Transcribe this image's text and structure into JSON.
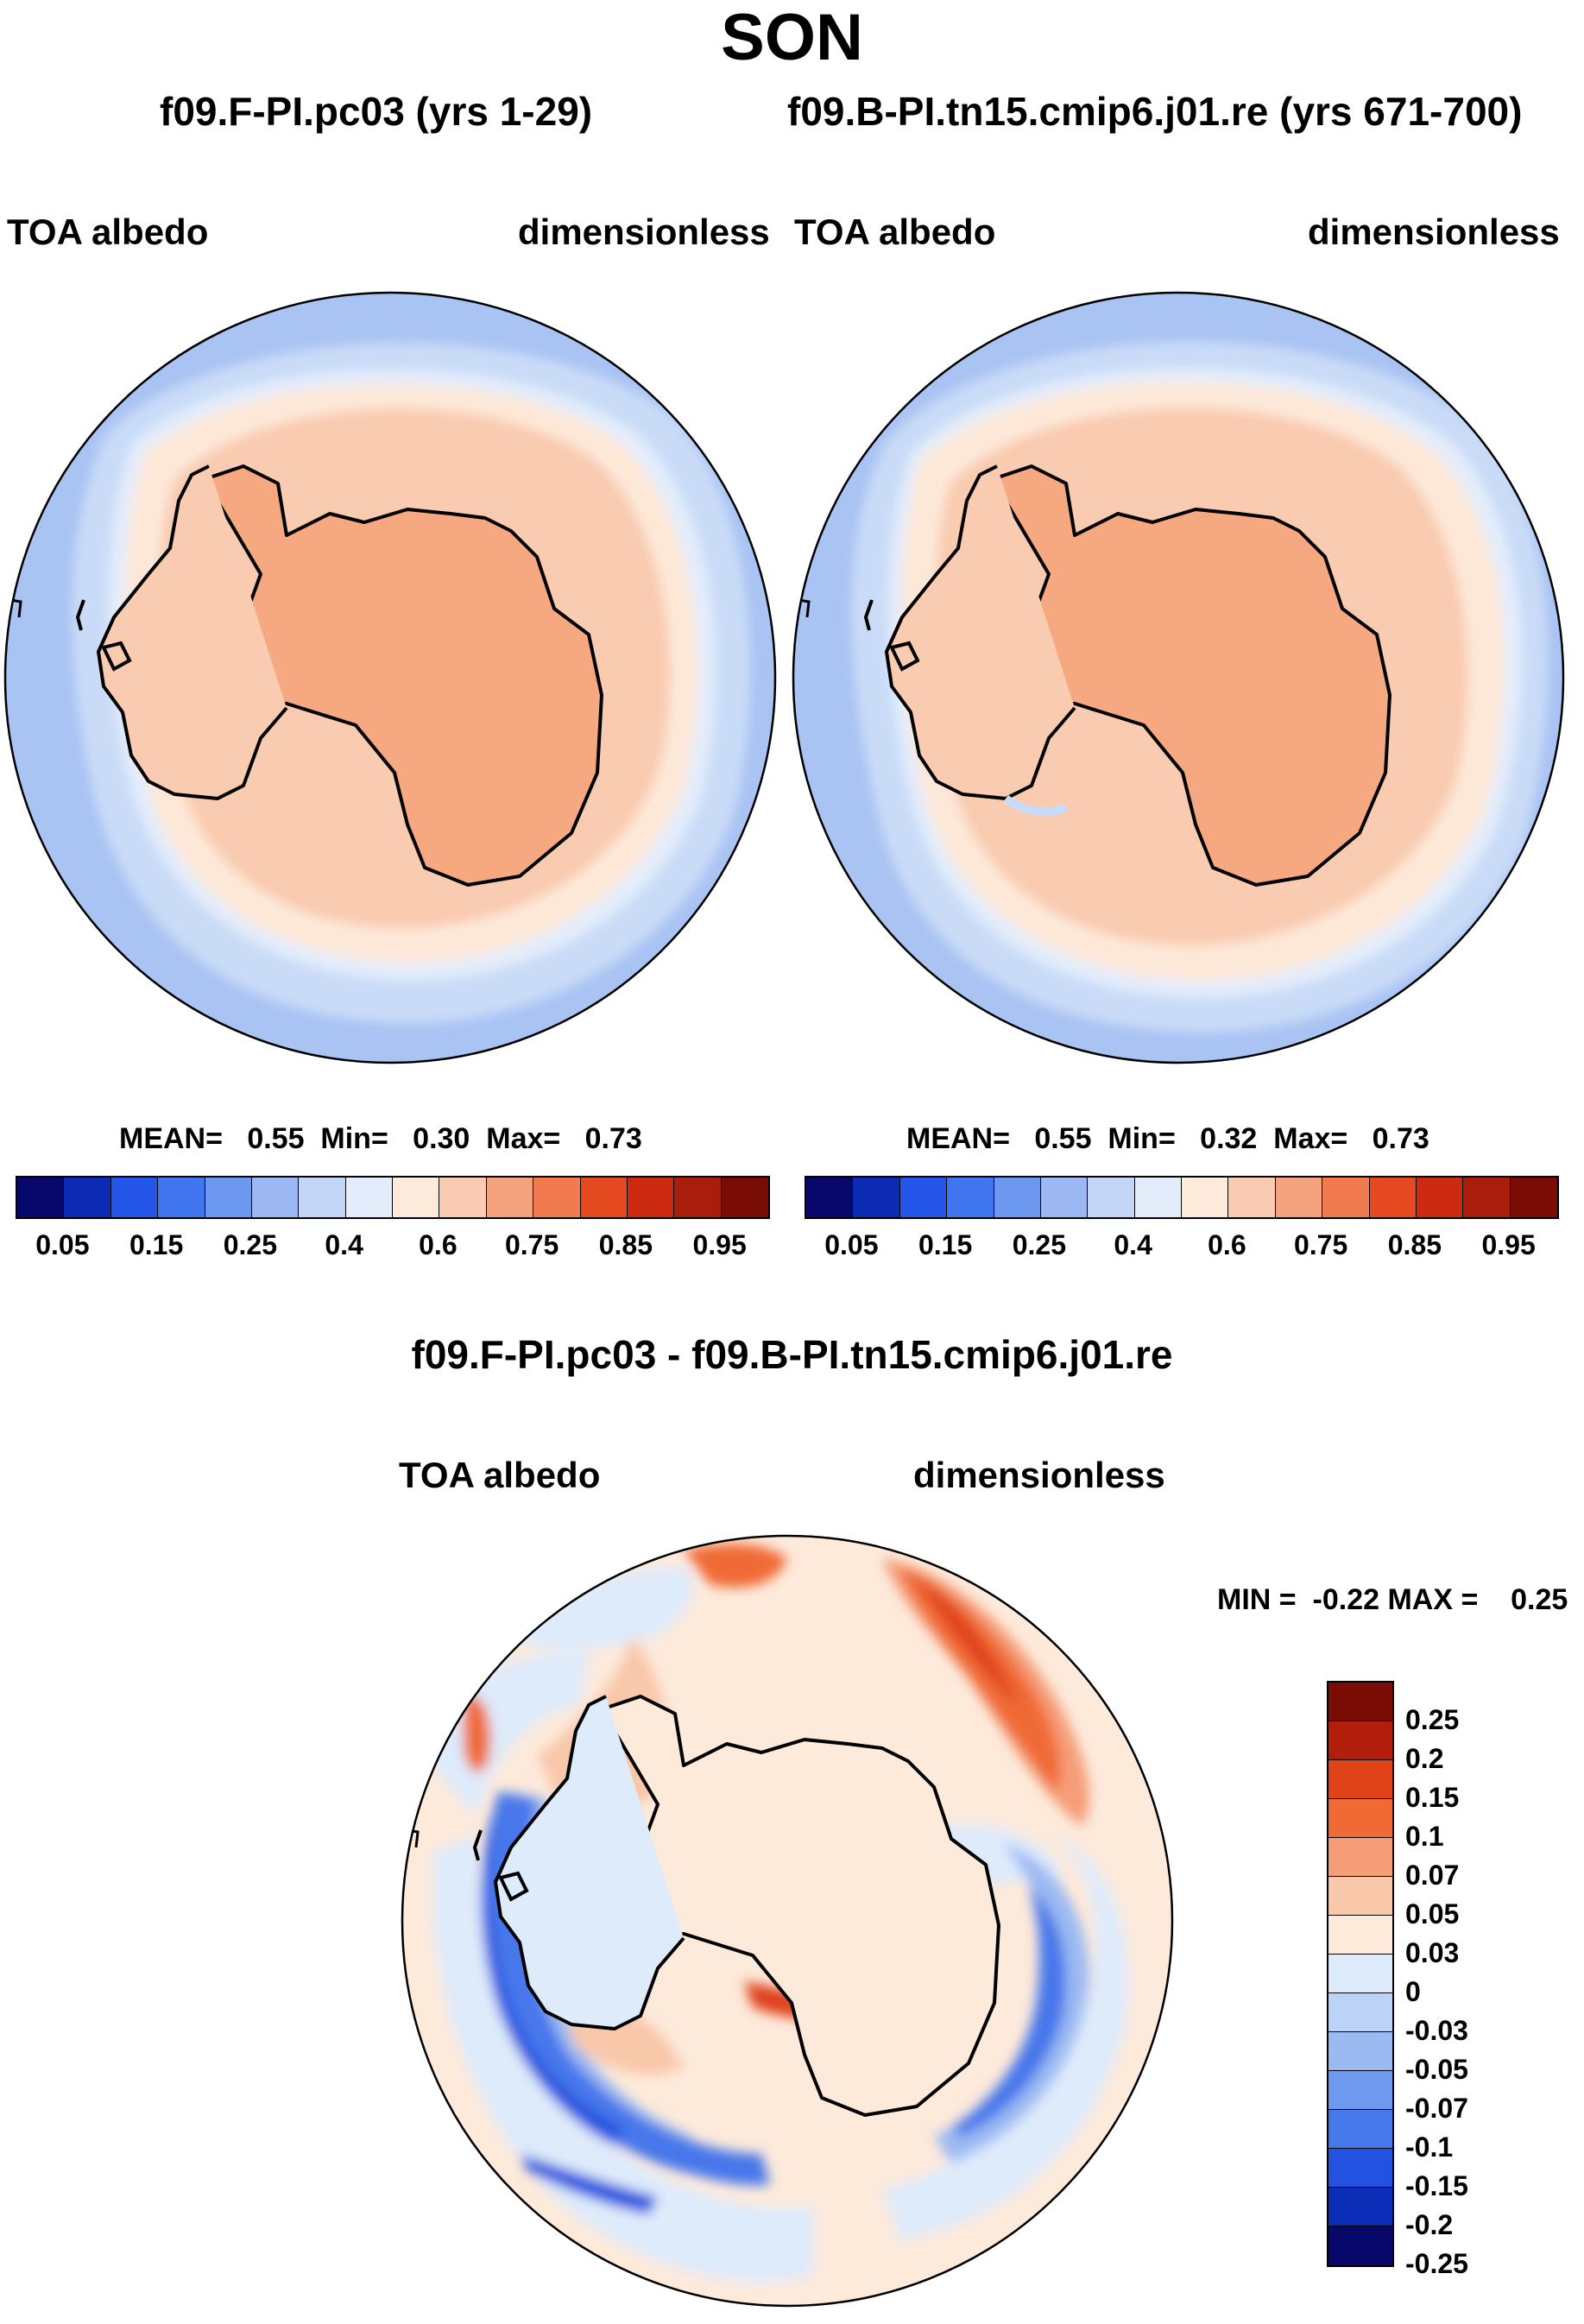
{
  "title": "SON",
  "left_panel": {
    "case": "f09.F-PI.pc03 (yrs 1-29)",
    "variable": "TOA albedo",
    "units": "dimensionless",
    "stats": {
      "mean_label": "MEAN=",
      "mean": "0.55",
      "min_label": "Min=",
      "min": "0.30",
      "max_label": "Max=",
      "max": "0.73"
    }
  },
  "right_panel": {
    "case": "f09.B-PI.tn15.cmip6.j01.re (yrs 671-700)",
    "variable": "TOA albedo",
    "units": "dimensionless",
    "stats": {
      "mean_label": "MEAN=",
      "mean": "0.55",
      "min_label": "Min=",
      "min": "0.32",
      "max_label": "Max=",
      "max": "0.73"
    }
  },
  "colorbar": {
    "colors": [
      "#08086b",
      "#0b2bb5",
      "#2355e8",
      "#3f76f0",
      "#6c98ef",
      "#9bb8f2",
      "#c4d6f7",
      "#e2ecfb",
      "#fdeadb",
      "#f9cbb0",
      "#f4a37f",
      "#f27a4f",
      "#e4491f",
      "#cc2a10",
      "#a81d0b",
      "#7a0c06"
    ],
    "tick_labels": [
      "0.05",
      "0.15",
      "0.25",
      "0.4",
      "0.6",
      "0.75",
      "0.85",
      "0.95"
    ]
  },
  "diff_panel": {
    "title": "f09.F-PI.pc03 - f09.B-PI.tn15.cmip6.j01.re",
    "variable": "TOA albedo",
    "units": "dimensionless",
    "minmax": {
      "min_label": "MIN =",
      "min": "-0.22",
      "max_label": "MAX =",
      "max": "0.25"
    },
    "colorbar": {
      "colors": [
        "#7a0c06",
        "#b21d0c",
        "#e0421a",
        "#f06a36",
        "#f59d77",
        "#f9c7aa",
        "#fdeadb",
        "#deebfb",
        "#bcd3f7",
        "#9bbaf2",
        "#6f99ee",
        "#4677eb",
        "#2252df",
        "#0b2db8",
        "#08086b"
      ],
      "tick_labels": [
        "0.25",
        "0.2",
        "0.15",
        "0.1",
        "0.07",
        "0.05",
        "0.03",
        "0",
        "-0.03",
        "-0.05",
        "-0.07",
        "-0.1",
        "-0.15",
        "-0.2",
        "-0.25"
      ]
    }
  }
}
